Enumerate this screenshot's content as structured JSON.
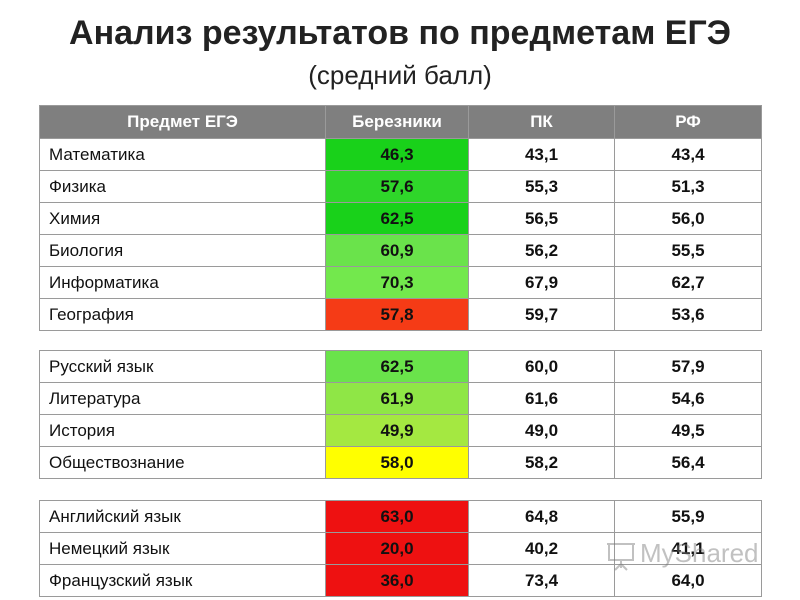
{
  "title": "Анализ результатов по предметам ЕГЭ",
  "subtitle": "(средний балл)",
  "colors": {
    "header_bg": "#7f7f7f",
    "green_dark": "#19d11a",
    "green_mid": "#4be23a",
    "green_light": "#73e84d",
    "green_yellow": "#a4e841",
    "orange_red": "#f53b16",
    "red": "#ee1111",
    "yellow": "#ffff00"
  },
  "headers": [
    "Предмет ЕГЭ",
    "Березники",
    "ПК",
    "РФ"
  ],
  "groups": [
    {
      "rows": [
        {
          "subject": "Математика",
          "berezniki": "46,3",
          "pk": "43,1",
          "rf": "43,4",
          "color": "#19d11a"
        },
        {
          "subject": "Физика",
          "berezniki": "57,6",
          "pk": "55,3",
          "rf": "51,3",
          "color": "#2fd62a"
        },
        {
          "subject": "Химия",
          "berezniki": "62,5",
          "pk": "56,5",
          "rf": "56,0",
          "color": "#19d11a"
        },
        {
          "subject": "Биология",
          "berezniki": "60,9",
          "pk": "56,2",
          "rf": "55,5",
          "color": "#6ae34b"
        },
        {
          "subject": "Информатика",
          "berezniki": "70,3",
          "pk": "67,9",
          "rf": "62,7",
          "color": "#73e84d"
        },
        {
          "subject": "География",
          "berezniki": "57,8",
          "pk": "59,7",
          "rf": "53,6",
          "color": "#f53b16"
        }
      ]
    },
    {
      "rows": [
        {
          "subject": "Русский язык",
          "berezniki": "62,5",
          "pk": "60,0",
          "rf": "57,9",
          "color": "#6ae34b"
        },
        {
          "subject": "Литература",
          "berezniki": "61,9",
          "pk": "61,6",
          "rf": "54,6",
          "color": "#8fe646"
        },
        {
          "subject": "История",
          "berezniki": "49,9",
          "pk": "49,0",
          "rf": "49,5",
          "color": "#a4e841"
        },
        {
          "subject": "Обществознание",
          "berezniki": "58,0",
          "pk": "58,2",
          "rf": "56,4",
          "color": "#ffff00"
        }
      ]
    },
    {
      "rows": [
        {
          "subject": "Английский язык",
          "berezniki": "63,0",
          "pk": "64,8",
          "rf": "55,9",
          "color": "#ee1111"
        },
        {
          "subject": "Немецкий язык",
          "berezniki": "20,0",
          "pk": "40,2",
          "rf": "41,1",
          "color": "#ee1111"
        },
        {
          "subject": "Французский язык",
          "berezniki": "36,0",
          "pk": "73,4",
          "rf": "64,0",
          "color": "#ee1111"
        }
      ]
    }
  ],
  "watermark": {
    "text": "MyShared",
    "icon": "presentation-board-icon"
  }
}
